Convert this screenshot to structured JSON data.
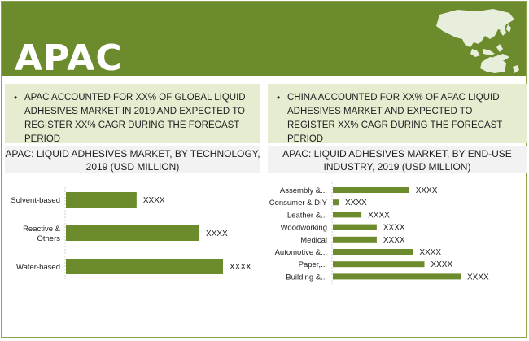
{
  "banner": {
    "title": "APAC",
    "map_icon": "asia-pacific-map-icon"
  },
  "callouts": [
    {
      "text": "APAC ACCOUNTED FOR XX% OF GLOBAL LIQUID ADHESIVES MARKET IN 2019 AND EXPECTED TO REGISTER XX% CAGR DURING THE FORECAST PERIOD"
    },
    {
      "text": "CHINA ACCOUNTED FOR XX% OF APAC LIQUID ADHESIVES MARKET AND EXPECTED TO REGISTER XX% CAGR DURING THE FORECAST PERIOD"
    }
  ],
  "colors": {
    "brand_green": "#6b8b2d",
    "callout_bg": "#e5ecd0",
    "band_bg": "#f2f2f2"
  },
  "chart_data": [
    {
      "type": "bar",
      "orientation": "horizontal",
      "title": "APAC: LIQUID ADHESIVES MARKET, BY TECHNOLOGY, 2019 (USD MILLION)",
      "categories": [
        "Solvent-based",
        "Reactive & Others",
        "Water-based"
      ],
      "values": [
        45,
        85,
        100
      ],
      "value_labels": [
        "XXXX",
        "XXXX",
        "XXXX"
      ],
      "xlim": [
        0,
        100
      ],
      "grid": false,
      "legend": "none"
    },
    {
      "type": "bar",
      "orientation": "horizontal",
      "title": "APAC: LIQUID ADHESIVES MARKET, BY END-USE INDUSTRY, 2019 (USD MILLION)",
      "categories": [
        "Assembly &...",
        "Consumer & DIY",
        "Leather &...",
        "Woodworking",
        "Medical",
        "Automotive &...",
        "Paper,...",
        "Building &..."
      ],
      "values": [
        40,
        3,
        15,
        23,
        23,
        42,
        48,
        67
      ],
      "value_labels": [
        "XXXX",
        "XXXX",
        "XXXX",
        "XXXX",
        "XXXX",
        "XXXX",
        "XXXX",
        "XXXX"
      ],
      "xlim": [
        0,
        67
      ],
      "grid": false,
      "legend": "none"
    }
  ]
}
